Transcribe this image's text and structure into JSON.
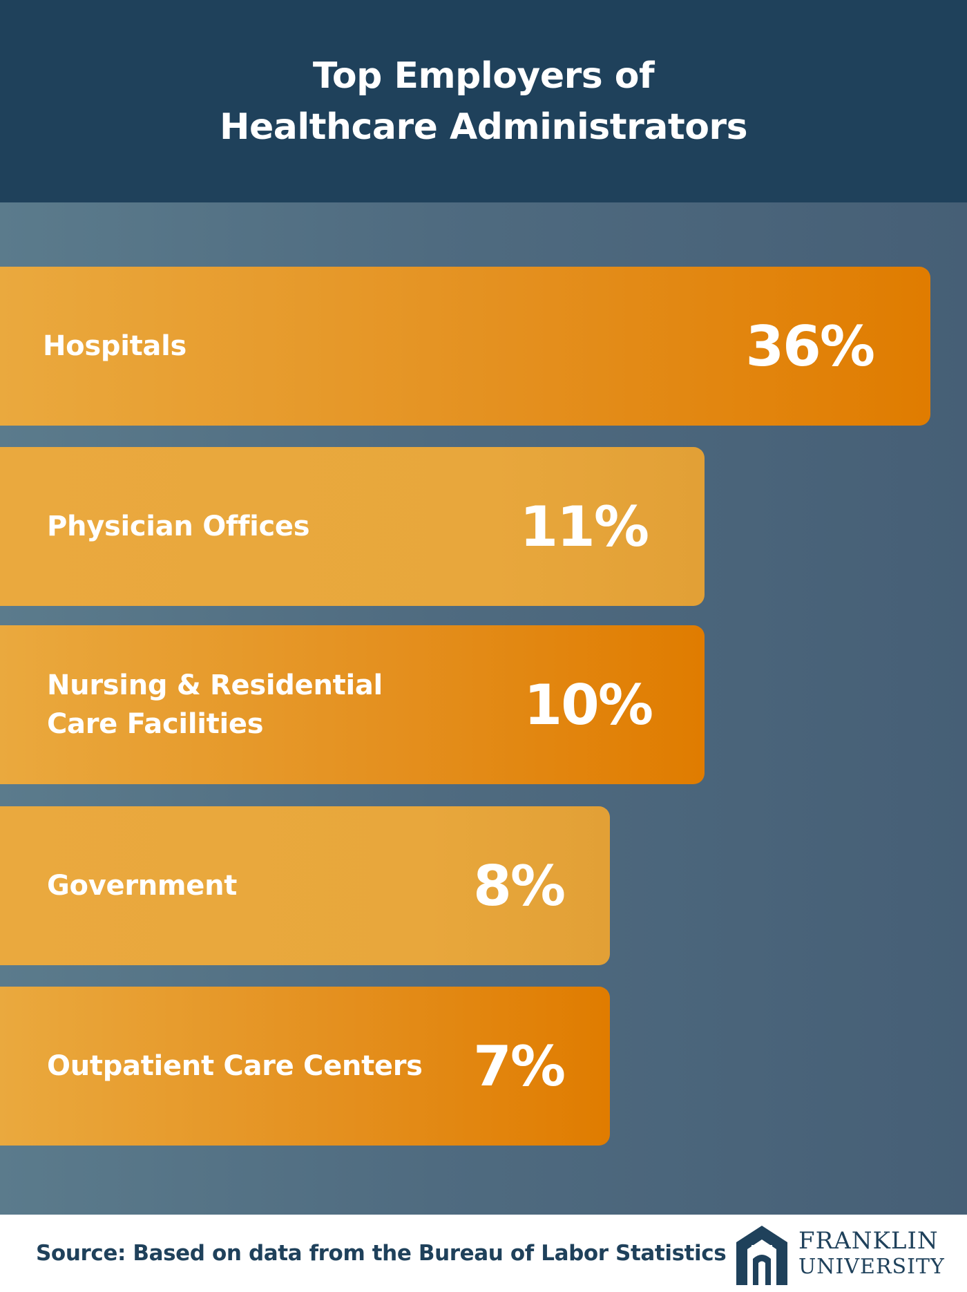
{
  "header": {
    "title_line1": "Top Employers of",
    "title_line2": "Healthcare Administrators"
  },
  "chart_data": {
    "type": "bar",
    "orientation": "horizontal",
    "title": "Top Employers of Healthcare Administrators",
    "categories": [
      "Hospitals",
      "Physician Offices",
      "Nursing & Residential\nCare Facilities",
      "Government",
      "Outpatient Care Centers"
    ],
    "values": [
      36,
      11,
      10,
      8,
      7
    ],
    "value_labels": [
      "36%",
      "11%",
      "10%",
      "8%",
      "7%"
    ],
    "unit": "%",
    "grid": false,
    "legend": "none"
  },
  "footer": {
    "source": "Source: Based on data from the Bureau of Labor Statistics"
  },
  "logo": {
    "line1": "FRANKLIN",
    "line2": "UNIVERSITY",
    "icon": "franklin-arch-logo-icon"
  },
  "colors": {
    "header_bg": "#1f415b",
    "panel_bg": "#4f6b80",
    "bar_light": "#eaa93e",
    "bar_dark": "#e07c00",
    "text_dark": "#1f415b"
  }
}
